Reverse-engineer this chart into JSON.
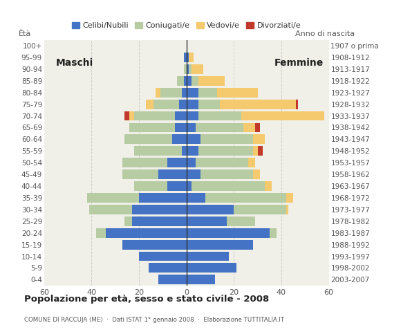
{
  "age_groups": [
    "0-4",
    "5-9",
    "10-14",
    "15-19",
    "20-24",
    "25-29",
    "30-34",
    "35-39",
    "40-44",
    "45-49",
    "50-54",
    "55-59",
    "60-64",
    "65-69",
    "70-74",
    "75-79",
    "80-84",
    "85-89",
    "90-94",
    "95-99",
    "100+"
  ],
  "birth_years": [
    "2003-2007",
    "1998-2002",
    "1993-1997",
    "1988-1992",
    "1983-1987",
    "1978-1982",
    "1973-1977",
    "1968-1972",
    "1963-1967",
    "1958-1962",
    "1953-1957",
    "1948-1952",
    "1943-1947",
    "1938-1942",
    "1933-1937",
    "1928-1932",
    "1923-1927",
    "1918-1922",
    "1913-1917",
    "1908-1912",
    "1907 o prima"
  ],
  "maschi": {
    "celibe": [
      12,
      16,
      20,
      27,
      34,
      23,
      23,
      20,
      8,
      12,
      8,
      2,
      6,
      5,
      5,
      3,
      2,
      1,
      0,
      1,
      0
    ],
    "coniugato": [
      0,
      0,
      0,
      0,
      4,
      3,
      18,
      22,
      14,
      15,
      19,
      20,
      20,
      19,
      17,
      11,
      9,
      3,
      1,
      0,
      0
    ],
    "vedovo": [
      0,
      0,
      0,
      0,
      0,
      0,
      0,
      0,
      0,
      0,
      0,
      0,
      0,
      0,
      2,
      3,
      2,
      0,
      0,
      0,
      0
    ],
    "divorziato": [
      0,
      0,
      0,
      0,
      0,
      0,
      0,
      0,
      0,
      0,
      0,
      0,
      0,
      0,
      2,
      0,
      0,
      0,
      0,
      0,
      0
    ]
  },
  "femmine": {
    "celibe": [
      12,
      21,
      18,
      28,
      35,
      17,
      20,
      8,
      2,
      6,
      4,
      5,
      6,
      4,
      5,
      5,
      5,
      2,
      1,
      1,
      0
    ],
    "coniugato": [
      0,
      0,
      0,
      0,
      3,
      12,
      22,
      34,
      31,
      22,
      22,
      23,
      22,
      20,
      18,
      9,
      8,
      3,
      1,
      0,
      0
    ],
    "vedovo": [
      0,
      0,
      0,
      0,
      0,
      0,
      1,
      3,
      3,
      3,
      3,
      2,
      5,
      5,
      35,
      32,
      17,
      11,
      5,
      2,
      0
    ],
    "divorziato": [
      0,
      0,
      0,
      0,
      0,
      0,
      0,
      0,
      0,
      0,
      0,
      2,
      0,
      2,
      0,
      1,
      0,
      0,
      0,
      0,
      0
    ]
  },
  "colors": {
    "celibe": "#4472c4",
    "coniugato": "#b8cca4",
    "vedovo": "#f5c96e",
    "divorziato": "#c0392b"
  },
  "xlim": 60,
  "title": "Popolazione per età, sesso e stato civile - 2008",
  "subtitle": "COMUNE DI RACCUJA (ME)  ·  Dati ISTAT 1° gennaio 2008  ·  Elaborazione TUTTITALIA.IT",
  "legend_labels": [
    "Celibi/Nubili",
    "Coniugati/e",
    "Vedovi/e",
    "Divorziati/e"
  ],
  "maschi_label": "Maschi",
  "femmine_label": "Femmine",
  "eta_label": "Ètà",
  "anno_label": "Anno di nascita",
  "bg_color": "#ffffff",
  "plot_bg": "#f0f0e8"
}
